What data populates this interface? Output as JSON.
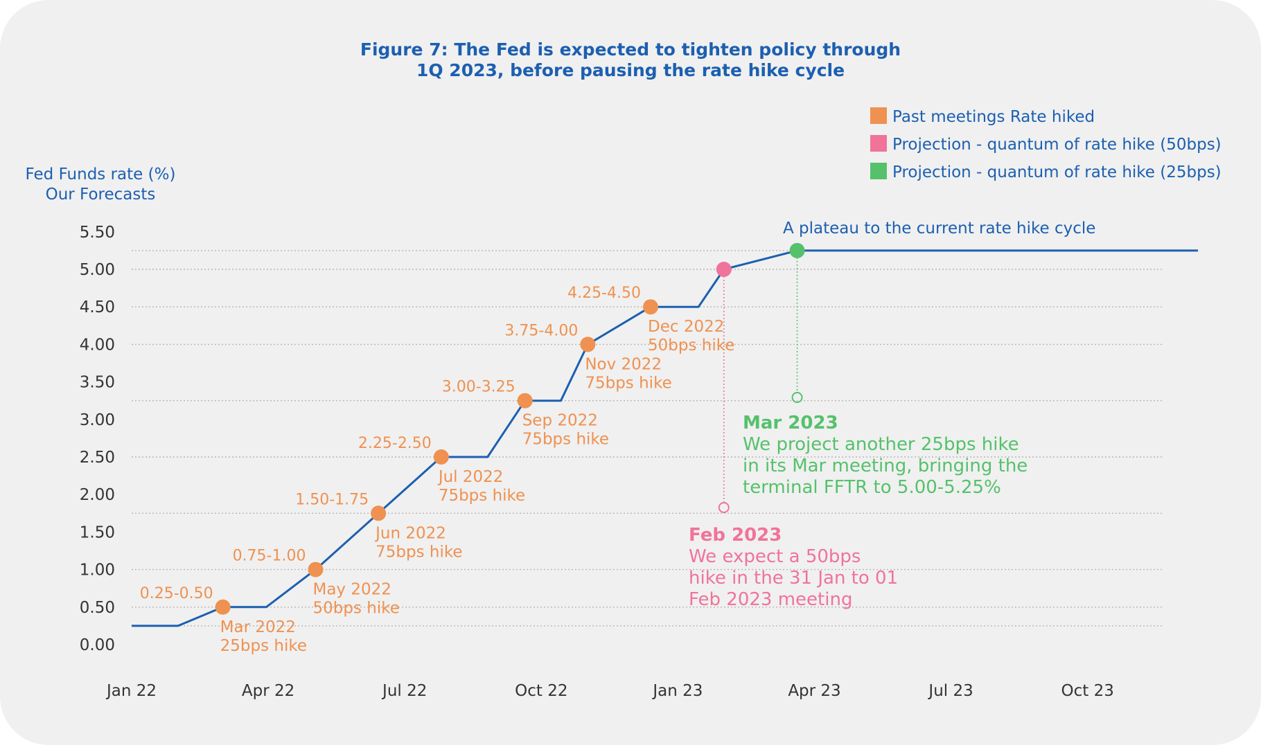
{
  "chart_data": {
    "type": "line",
    "title": [
      "Figure 7: The Fed is expected to tighten policy through",
      "1Q 2023, before pausing the rate hike cycle"
    ],
    "ylabel": [
      "Fed Funds rate (%)",
      "Our Forecasts"
    ],
    "ylim": [
      0,
      5.5
    ],
    "yticks": [
      "0.00",
      "0.50",
      "1.00",
      "1.50",
      "2.00",
      "2.50",
      "3.00",
      "3.50",
      "4.00",
      "4.50",
      "5.00",
      "5.50"
    ],
    "xticks": [
      "Jan 22",
      "Apr 22",
      "Jul 22",
      "Oct 22",
      "Jan 23",
      "Apr 23",
      "Jul 23",
      "Oct 23"
    ],
    "grid": "dotted lines at each step level",
    "legend_position": "top-right",
    "colors": {
      "line": "#1c5fb0",
      "past": "#ef9150",
      "proj50": "#f0739a",
      "proj25": "#55c16b",
      "grid": "#b5b5b5"
    },
    "legend": [
      {
        "label": "Past meetings Rate hiked",
        "color": "#ef9150"
      },
      {
        "label": "Projection - quantum of rate hike (50bps)",
        "color": "#f0739a"
      },
      {
        "label": "Projection - quantum of rate hike (25bps)",
        "color": "#55c16b"
      }
    ],
    "series": [
      {
        "points": [
          [
            "2022-01-01",
            0.25
          ],
          [
            "2022-02-01",
            0.25
          ],
          [
            "2022-03-03",
            0.5
          ],
          [
            "2022-04-01",
            0.5
          ],
          [
            "2022-05-04",
            1.0
          ],
          [
            "2022-06-15",
            1.75
          ],
          [
            "2022-07-27",
            2.5
          ],
          [
            "2022-08-27",
            2.5
          ],
          [
            "2022-09-21",
            3.25
          ],
          [
            "2022-10-15",
            3.25
          ],
          [
            "2022-11-02",
            4.0
          ],
          [
            "2022-12-14",
            4.5
          ],
          [
            "2023-01-15",
            4.5
          ],
          [
            "2023-02-01",
            5.0
          ],
          [
            "2023-03-22",
            5.25
          ],
          [
            "2023-12-15",
            5.25
          ]
        ]
      }
    ],
    "markers": [
      {
        "date": "2022-03-03",
        "value": 0.5,
        "kind": "past",
        "range": "0.25-0.50",
        "labels": [
          "Mar 2022",
          "25bps hike"
        ]
      },
      {
        "date": "2022-05-04",
        "value": 1.0,
        "kind": "past",
        "range": "0.75-1.00",
        "labels": [
          "May 2022",
          "50bps hike"
        ]
      },
      {
        "date": "2022-06-15",
        "value": 1.75,
        "kind": "past",
        "range": "1.50-1.75",
        "labels": [
          "Jun 2022",
          "75bps hike"
        ]
      },
      {
        "date": "2022-07-27",
        "value": 2.5,
        "kind": "past",
        "range": "2.25-2.50",
        "labels": [
          "Jul 2022",
          "75bps hike"
        ]
      },
      {
        "date": "2022-09-21",
        "value": 3.25,
        "kind": "past",
        "range": "3.00-3.25",
        "labels": [
          "Sep 2022",
          "75bps hike"
        ]
      },
      {
        "date": "2022-11-02",
        "value": 4.0,
        "kind": "past",
        "range": "3.75-4.00",
        "labels": [
          "Nov 2022",
          "75bps hike"
        ]
      },
      {
        "date": "2022-12-14",
        "value": 4.5,
        "kind": "past",
        "range": "4.25-4.50",
        "labels": [
          "Dec 2022",
          "50bps hike"
        ]
      },
      {
        "date": "2023-02-01",
        "value": 5.0,
        "kind": "proj50"
      },
      {
        "date": "2023-03-22",
        "value": 5.25,
        "kind": "proj25"
      }
    ],
    "plateau_label": "A plateau to the current rate hike cycle",
    "annotations": [
      {
        "kind": "proj25",
        "heading": "Mar 2023",
        "lines": [
          "We project another 25bps hike",
          "in its Mar meeting, bringing the",
          "terminal FFTR to 5.00-5.25%"
        ]
      },
      {
        "kind": "proj50",
        "heading": "Feb 2023",
        "lines": [
          "We expect a 50bps",
          "hike in the 31 Jan to 01",
          "Feb 2023 meeting"
        ]
      }
    ]
  }
}
